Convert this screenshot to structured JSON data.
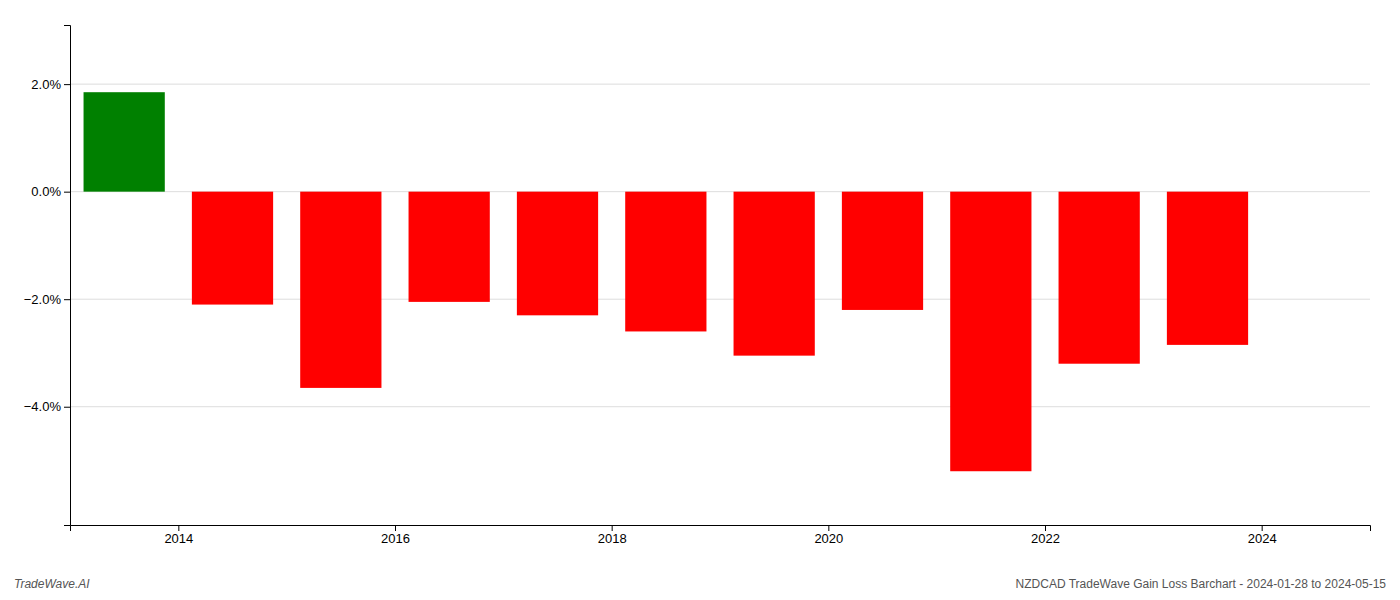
{
  "chart_data": {
    "type": "bar",
    "x": [
      2013.5,
      2014.5,
      2015.5,
      2016.5,
      2017.5,
      2018.5,
      2019.5,
      2020.5,
      2021.5,
      2022.5,
      2023.5
    ],
    "values": [
      1.85,
      -2.1,
      -3.65,
      -2.05,
      -2.3,
      -2.6,
      -3.05,
      -2.2,
      -5.2,
      -3.2,
      -2.85
    ],
    "colors": [
      "#008000",
      "#ff0000",
      "#ff0000",
      "#ff0000",
      "#ff0000",
      "#ff0000",
      "#ff0000",
      "#ff0000",
      "#ff0000",
      "#ff0000",
      "#ff0000"
    ],
    "xlim": [
      2013.0,
      2025.0
    ],
    "xticks": [
      2014,
      2016,
      2018,
      2020,
      2022,
      2024
    ],
    "ylim": [
      -6.2,
      3.1
    ],
    "yticks": [
      {
        "value": -4.0,
        "label": "−4.0%"
      },
      {
        "value": -2.0,
        "label": "−2.0%"
      },
      {
        "value": 0.0,
        "label": "0.0%"
      },
      {
        "value": 2.0,
        "label": "2.0%"
      }
    ],
    "grid": true,
    "annotations": [
      "TradeWave.AI",
      "NZDCAD TradeWave Gain Loss Barchart - 2024-01-28 to 2024-05-15"
    ]
  }
}
